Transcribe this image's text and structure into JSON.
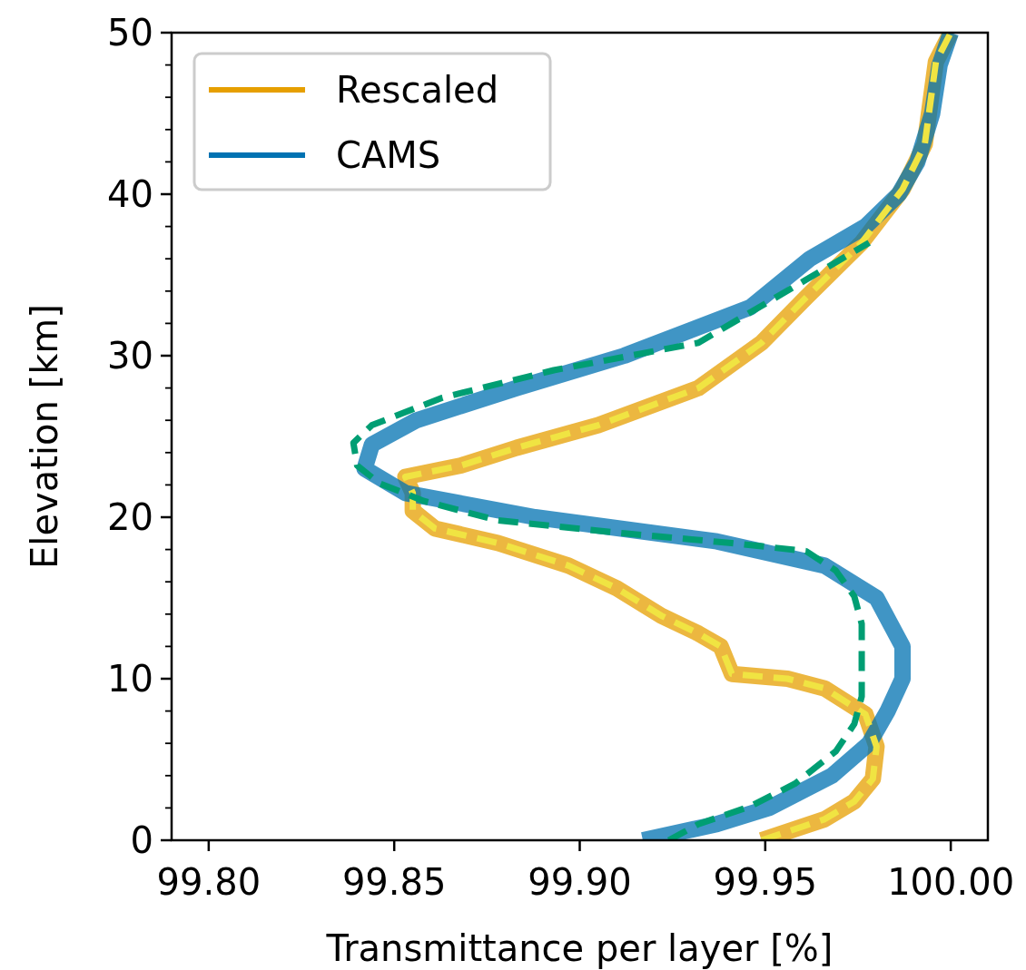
{
  "chart_data": {
    "type": "line",
    "xlabel": "Transmittance per layer [%]",
    "ylabel": "Elevation [km]",
    "xlim": [
      99.79,
      100.01
    ],
    "ylim": [
      0,
      50
    ],
    "xticks": [
      {
        "value": 99.8,
        "label": "99.80"
      },
      {
        "value": 99.85,
        "label": "99.85"
      },
      {
        "value": 99.9,
        "label": "99.90"
      },
      {
        "value": 99.95,
        "label": "99.95"
      },
      {
        "value": 100,
        "label": "100.00"
      }
    ],
    "yticks": [
      0,
      {
        "value": 2,
        "label": null
      },
      {
        "value": 4,
        "label": null
      },
      {
        "value": 6,
        "label": null
      },
      {
        "value": 8,
        "label": null
      },
      10,
      {
        "value": 12,
        "label": null
      },
      {
        "value": 14,
        "label": null
      },
      {
        "value": 16,
        "label": null
      },
      {
        "value": 18,
        "label": null
      },
      20,
      {
        "value": 22,
        "label": null
      },
      {
        "value": 24,
        "label": null
      },
      {
        "value": 26,
        "label": null
      },
      {
        "value": 28,
        "label": null
      },
      30,
      {
        "value": 32,
        "label": null
      },
      {
        "value": 34,
        "label": null
      },
      {
        "value": 36,
        "label": null
      },
      {
        "value": 38,
        "label": null
      },
      40,
      {
        "value": 42,
        "label": null
      },
      {
        "value": 44,
        "label": null
      },
      {
        "value": 46,
        "label": null
      },
      {
        "value": 48,
        "label": null
      },
      50
    ],
    "legend": "top left",
    "grid": false,
    "series": [
      {
        "name": "Rescaled",
        "color": "#e69f00",
        "line_style": "solid",
        "x": [
          99.949,
          99.966,
          99.974,
          99.979,
          99.98,
          99.977,
          99.966,
          99.956,
          99.941,
          99.938,
          99.932,
          99.922,
          99.91,
          99.897,
          99.878,
          99.861,
          99.855,
          99.855,
          99.853,
          99.868,
          99.883,
          99.905,
          99.932,
          99.949,
          99.961,
          99.976,
          99.987,
          99.993,
          99.996,
          100.0
        ],
        "values": [
          0,
          1.3,
          2.4,
          3.8,
          5.8,
          7.8,
          9.4,
          10,
          10.3,
          12,
          12.8,
          13.9,
          15.6,
          17,
          18.4,
          19.3,
          20.4,
          21.5,
          22.5,
          23.2,
          24.3,
          25.7,
          28,
          30.8,
          33.6,
          37,
          40.3,
          43.1,
          48.2,
          50
        ]
      },
      {
        "name": "CAMS",
        "color": "#0072b2",
        "line_style": "solid",
        "x": [
          99.917,
          99.937,
          99.951,
          99.968,
          99.978,
          99.983,
          99.987,
          99.987,
          99.98,
          99.966,
          99.937,
          99.888,
          99.853,
          99.842,
          99.844,
          99.856,
          99.883,
          99.912,
          99.946,
          99.962,
          99.977,
          99.986,
          99.991,
          99.995,
          99.997,
          100.0
        ],
        "values": [
          0,
          1,
          2,
          4,
          6,
          8,
          10,
          12,
          15,
          17,
          18.5,
          20,
          21.5,
          23,
          24.5,
          26,
          28,
          30,
          33,
          36,
          38,
          40,
          42,
          45,
          48,
          50
        ]
      },
      {
        "color": "#f0e442",
        "line_style": "dashed",
        "x": [
          99.949,
          99.966,
          99.974,
          99.979,
          99.98,
          99.977,
          99.966,
          99.956,
          99.941,
          99.938,
          99.932,
          99.922,
          99.91,
          99.897,
          99.878,
          99.861,
          99.855,
          99.855,
          99.853,
          99.868,
          99.883,
          99.905,
          99.932,
          99.949,
          99.961,
          99.976,
          99.987,
          99.993,
          99.996,
          100.0
        ],
        "values": [
          0,
          1.3,
          2.4,
          3.8,
          5.8,
          7.8,
          9.4,
          10,
          10.3,
          12,
          12.8,
          13.9,
          15.6,
          17,
          18.4,
          19.3,
          20.4,
          21.5,
          22.5,
          23.2,
          24.3,
          25.7,
          28,
          30.8,
          33.6,
          37,
          40.3,
          43.1,
          48.2,
          50
        ]
      },
      {
        "color": "#009e73",
        "line_style": "dashed",
        "x": [
          99.924,
          99.932,
          99.946,
          99.958,
          99.969,
          99.974,
          99.976,
          99.976,
          99.976,
          99.974,
          99.969,
          99.961,
          99.941,
          99.912,
          99.878,
          99.858,
          99.846,
          99.84,
          99.839,
          99.844,
          99.863,
          99.893,
          99.932,
          99.961,
          99.978
        ],
        "values": [
          0,
          1,
          2.1,
          3.5,
          5.5,
          7.2,
          8.9,
          13.4,
          13.4,
          15.1,
          16.7,
          17.9,
          18.4,
          19,
          19.8,
          21,
          22.1,
          23.2,
          24.6,
          25.7,
          27.4,
          29.1,
          30.8,
          34.7,
          37
        ]
      }
    ]
  }
}
